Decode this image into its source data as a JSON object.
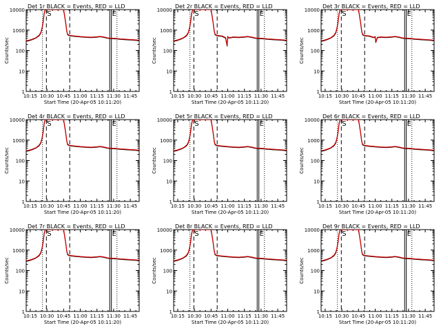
{
  "chart_data": {
    "type": "line",
    "panels": [
      {
        "title": "Det 1r BLACK = Events, RED = LLD"
      },
      {
        "title": "Det 2r BLACK = Events, RED = LLD",
        "dip": true
      },
      {
        "title": "Det 3r BLACK = Events, RED = LLD",
        "dip2": true
      },
      {
        "title": "Det 4r BLACK = Events, RED = LLD"
      },
      {
        "title": "Det 5r BLACK = Events, RED = LLD"
      },
      {
        "title": "Det 6r BLACK = Events, RED = LLD"
      },
      {
        "title": "Det 7r BLACK = Events, RED = LLD"
      },
      {
        "title": "Det 8r BLACK = Events, RED = LLD"
      },
      {
        "title": "Det 9r BLACK = Events, RED = LLD"
      }
    ],
    "xlabel": "Start Time (20-Apr-05 10:11:20)",
    "ylabel": "Counts/sec",
    "x_ticks": [
      "10:15",
      "10:30",
      "10:45",
      "11:00",
      "11:15",
      "11:30",
      "11:45"
    ],
    "x_tick_minutes": [
      15,
      30,
      45,
      60,
      75,
      90,
      105
    ],
    "xlim_minutes": [
      11.33,
      113
    ],
    "y_ticks": [
      "1",
      "10",
      "100",
      "1000",
      "10000"
    ],
    "y_tick_values": [
      1,
      10,
      100,
      1000,
      10000
    ],
    "ylim": [
      1,
      10000
    ],
    "y_scale": "log",
    "markers": {
      "saa_start_label": "S",
      "saa_end_label": "E",
      "dotted_minutes": [
        26,
        93
      ],
      "dashed_minutes": [
        29.5,
        50.5
      ],
      "solid_minutes": [
        86.5,
        88
      ]
    },
    "series": [
      {
        "name": "Events",
        "color": "#000000",
        "points": [
          [
            11.33,
            280
          ],
          [
            14,
            300
          ],
          [
            17,
            340
          ],
          [
            20,
            400
          ],
          [
            23,
            520
          ],
          [
            24.5,
            700
          ],
          [
            25.5,
            1100
          ],
          [
            26.5,
            2200
          ],
          [
            27.5,
            6000
          ],
          [
            28.5,
            10000
          ],
          [
            45,
            10000
          ],
          [
            46,
            4500
          ],
          [
            47,
            2000
          ],
          [
            47.8,
            900
          ],
          [
            48.5,
            600
          ],
          [
            50,
            520
          ],
          [
            55,
            490
          ],
          [
            60,
            460
          ],
          [
            65,
            440
          ],
          [
            70,
            430
          ],
          [
            75,
            450
          ],
          [
            78,
            470
          ],
          [
            81,
            440
          ],
          [
            85,
            390
          ],
          [
            88,
            380
          ],
          [
            92,
            370
          ],
          [
            96,
            350
          ],
          [
            100,
            340
          ],
          [
            104,
            330
          ],
          [
            108,
            320
          ],
          [
            113,
            300
          ]
        ]
      },
      {
        "name": "LLD",
        "color": "#cc0000",
        "points": [
          [
            11.33,
            300
          ],
          [
            14,
            320
          ],
          [
            17,
            360
          ],
          [
            20,
            420
          ],
          [
            23,
            560
          ],
          [
            24.5,
            760
          ],
          [
            25.5,
            1200
          ],
          [
            26.5,
            2400
          ],
          [
            27.5,
            6500
          ],
          [
            28.5,
            10000
          ],
          [
            45,
            10000
          ],
          [
            46,
            4800
          ],
          [
            47,
            2100
          ],
          [
            47.8,
            950
          ],
          [
            48.5,
            640
          ],
          [
            50,
            550
          ],
          [
            55,
            510
          ],
          [
            60,
            480
          ],
          [
            65,
            460
          ],
          [
            70,
            450
          ],
          [
            75,
            470
          ],
          [
            78,
            490
          ],
          [
            81,
            460
          ],
          [
            85,
            410
          ],
          [
            88,
            400
          ],
          [
            92,
            390
          ],
          [
            96,
            370
          ],
          [
            100,
            360
          ],
          [
            104,
            345
          ],
          [
            108,
            335
          ],
          [
            113,
            320
          ]
        ]
      }
    ]
  }
}
